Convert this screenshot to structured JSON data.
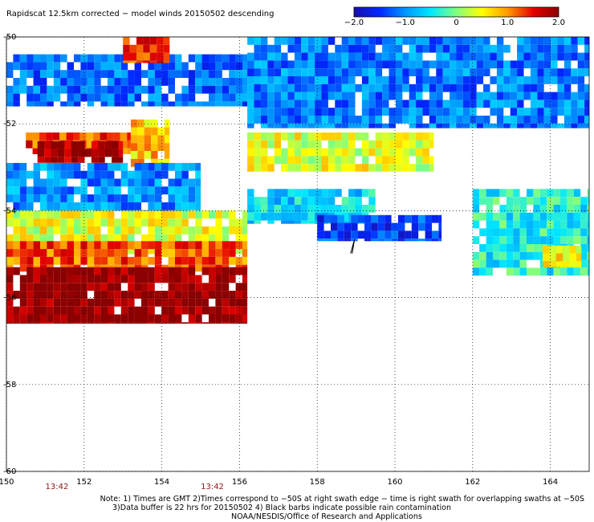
{
  "chart_data": {
    "type": "heatmap",
    "title": "Rapidscat 12.5km corrected − model winds 20150502 descending",
    "xlabel": "",
    "ylabel": "",
    "xlim": [
      150,
      165
    ],
    "ylim": [
      -60,
      -50
    ],
    "x_ticks": [
      "150",
      "152",
      "154",
      "156",
      "158",
      "160",
      "162",
      "164"
    ],
    "y_ticks": [
      "-50",
      "-52",
      "-54",
      "-56",
      "-58",
      "-60"
    ],
    "grid": true,
    "colorbar": {
      "min": -2.0,
      "max": 2.0,
      "ticks": [
        "−2.0",
        "−1.0",
        "0",
        "1.0",
        "2.0"
      ],
      "colors": [
        "#1a10a8",
        "#0026ff",
        "#0096ff",
        "#00e8ff",
        "#80ff80",
        "#ffff00",
        "#ff9b00",
        "#e60000",
        "#8b0000"
      ]
    },
    "swath_times": [
      {
        "label": "13:42",
        "lon": 151.3
      },
      {
        "label": "13:42",
        "lon": 155.3
      }
    ],
    "regions": [
      {
        "lon": [
          150.0,
          156.2
        ],
        "lat": [
          -50.4,
          -51.6
        ],
        "value": -1.2
      },
      {
        "lon": [
          153.0,
          154.2
        ],
        "lat": [
          -50.0,
          -50.6
        ],
        "value": 1.4
      },
      {
        "lon": [
          150.5,
          153.2
        ],
        "lat": [
          -52.2,
          -52.7
        ],
        "value": 1.3
      },
      {
        "lon": [
          150.8,
          153.0
        ],
        "lat": [
          -52.4,
          -52.9
        ],
        "value": 1.9
      },
      {
        "lon": [
          153.2,
          154.2
        ],
        "lat": [
          -51.9,
          -53.0
        ],
        "value": 0.8
      },
      {
        "lon": [
          150.0,
          155.0
        ],
        "lat": [
          -52.9,
          -54.0
        ],
        "value": -1.0
      },
      {
        "lon": [
          150.0,
          156.2
        ],
        "lat": [
          -54.0,
          -55.0
        ],
        "value": 0.4
      },
      {
        "lon": [
          150.0,
          156.2
        ],
        "lat": [
          -54.7,
          -55.4
        ],
        "value": 1.2
      },
      {
        "lon": [
          150.0,
          156.2
        ],
        "lat": [
          -55.3,
          -56.6
        ],
        "value": 2.0
      },
      {
        "lon": [
          156.2,
          165.0
        ],
        "lat": [
          -50.0,
          -52.1
        ],
        "value": -1.1
      },
      {
        "lon": [
          156.2,
          161.0
        ],
        "lat": [
          -52.2,
          -53.1
        ],
        "value": 0.4
      },
      {
        "lon": [
          156.2,
          159.5
        ],
        "lat": [
          -53.5,
          -54.3
        ],
        "value": -0.6
      },
      {
        "lon": [
          158.0,
          161.2
        ],
        "lat": [
          -54.1,
          -54.7
        ],
        "value": -1.4
      },
      {
        "lon": [
          162.0,
          165.0
        ],
        "lat": [
          -53.5,
          -55.5
        ],
        "value": -0.4
      },
      {
        "lon": [
          163.8,
          164.8
        ],
        "lat": [
          -54.8,
          -55.3
        ],
        "value": 0.6
      }
    ],
    "rain_barb": {
      "lon": 158.9,
      "lat": -54.8
    }
  },
  "notes": {
    "line1": "Note: 1) Times are GMT 2)Times correspond to −50S at right swath edge − time is right swath for overlapping swaths at −50S",
    "line2": "3)Data buffer is 22 hrs for 20150502 4) Black barbs indicate possible rain contamination",
    "line3": "NOAA/NESDIS/Office of Research and Applications"
  }
}
